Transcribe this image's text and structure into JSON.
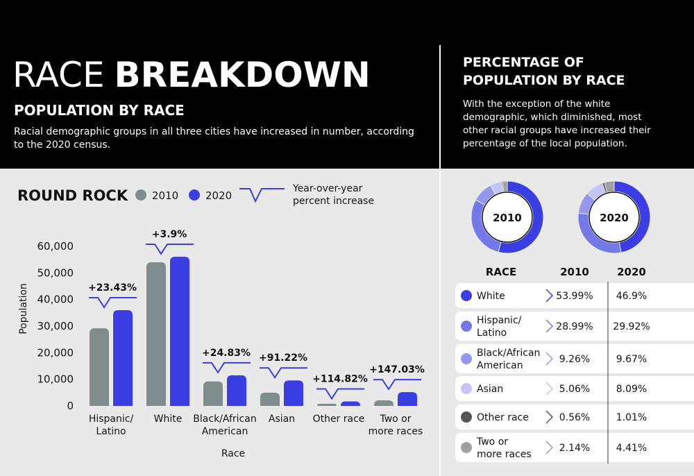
{
  "header": {
    "title_light": "RACE",
    "title_bold": "BREAKDOWN",
    "subtitle": "POPULATION BY RACE",
    "description": "Racial demographic groups in all three cities have increased in number, according\nto the 2020 census.",
    "side_title": "PERCENTAGE OF\nPOPULATION BY RACE",
    "side_description": "With the exception of the white\ndemographic, which diminished, most\nother racial groups have increased their\npercentage of the local population."
  },
  "chart_data": [
    {
      "type": "bar",
      "title": "ROUND ROCK",
      "x_label": "Race",
      "y_label": "Population",
      "categories": [
        "Hispanic/\nLatino",
        "White",
        "Black/African\nAmerican",
        "Asian",
        "Other race",
        "Two or\nmore races"
      ],
      "series": [
        {
          "name": "2010",
          "color": "#7f8c8d",
          "values": [
            29200,
            54000,
            9200,
            5000,
            800,
            2100
          ]
        },
        {
          "name": "2020",
          "color": "#3b3fe3",
          "values": [
            36000,
            56100,
            11500,
            9600,
            1700,
            5200
          ]
        }
      ],
      "annotation_legend": "Year-over-year\npercent increase",
      "annotations": [
        "+23.43%",
        "+3.9%",
        "+24.83%",
        "+91.22%",
        "+114.82%",
        "+147.03%"
      ],
      "ylim": [
        0,
        60000
      ],
      "yticks": [
        0,
        {
          "value": 10000,
          "label": "10,000"
        },
        {
          "value": 20000,
          "label": "20,000"
        },
        {
          "value": 30000,
          "label": "30,000"
        },
        {
          "value": 40000,
          "label": "40,000"
        },
        {
          "value": 50000,
          "label": "50,000"
        },
        {
          "value": 60000,
          "label": "60,000"
        }
      ]
    },
    {
      "type": "pie",
      "table_header": "RACE",
      "categories": [
        "White",
        "Hispanic/\nLatino",
        "Black/African\nAmerican",
        "Asian",
        "Other race",
        "Two or\nmore races"
      ],
      "colors": [
        "#3b3fe3",
        "#7479ea",
        "#9297ef",
        "#c3c5f6",
        "#555555",
        "#a0a0a0"
      ],
      "series": [
        {
          "name": "2010",
          "values": [
            53.99,
            28.99,
            9.26,
            5.06,
            0.56,
            2.14
          ],
          "value_labels": [
            "53.99%",
            "28.99%",
            "9.26%",
            "5.06%",
            "0.56%",
            "2.14%"
          ]
        },
        {
          "name": "2020",
          "values": [
            46.9,
            29.92,
            9.67,
            8.09,
            1.01,
            4.41
          ],
          "value_labels": [
            "46.9%",
            "29.92%",
            "9.67%",
            "8.09%",
            "1.01%",
            "4.41%"
          ]
        }
      ]
    }
  ]
}
